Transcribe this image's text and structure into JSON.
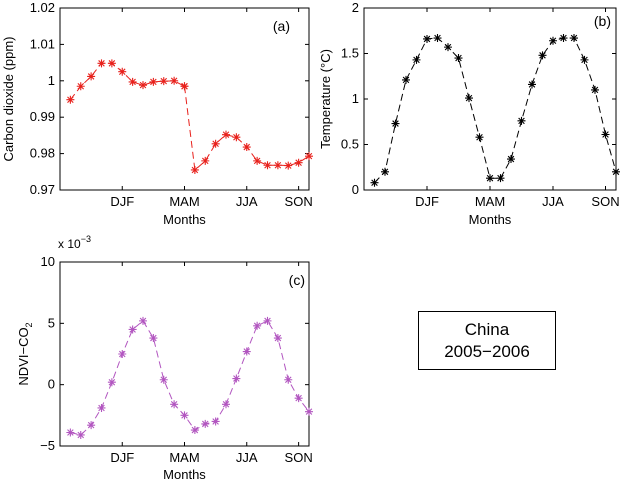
{
  "legend_box": {
    "line1": "China",
    "line2": "2005−2006"
  },
  "chart_data": [
    {
      "type": "line",
      "panel_label": "(a)",
      "color": "#e8211c",
      "xlabel": "Months",
      "ylabel": "Carbon dioxide (ppm)",
      "xticks": [
        "DJF",
        "MAM",
        "JJA",
        "SON"
      ],
      "xlim": [
        0,
        24
      ],
      "ylim": [
        0.97,
        1.02
      ],
      "yticks": [
        0.97,
        0.98,
        0.99,
        1,
        1.01,
        1.02
      ],
      "ytick_labels": [
        "0.97",
        "0.98",
        "0.99",
        "1",
        "1.01",
        "1.02"
      ],
      "marker": "asterisk",
      "line_style": "dashed",
      "series": [
        {
          "x": [
            1,
            2,
            3,
            4,
            5,
            6,
            7,
            8,
            9,
            10,
            11,
            12
          ],
          "y": [
            0.9948,
            0.9985,
            1.0012,
            1.0048,
            1.0048,
            1.0025,
            0.9997,
            0.9988,
            0.9997,
            0.9999,
            1.0,
            0.9985
          ]
        },
        {
          "x": [
            12,
            13,
            14,
            15,
            16,
            17,
            18,
            19,
            20,
            21,
            22,
            23,
            24
          ],
          "y": [
            0.9985,
            0.9755,
            0.978,
            0.9827,
            0.9852,
            0.9845,
            0.9818,
            0.978,
            0.9768,
            0.9768,
            0.9767,
            0.9775,
            0.9793
          ]
        }
      ]
    },
    {
      "type": "line",
      "panel_label": "(b)",
      "color": "#000000",
      "xlabel": "Months",
      "ylabel": "Temperature (°C)",
      "xticks": [
        "DJF",
        "MAM",
        "JJA",
        "SON"
      ],
      "xlim": [
        0,
        24
      ],
      "ylim": [
        0,
        2
      ],
      "yticks": [
        0,
        0.5,
        1,
        1.5,
        2
      ],
      "ytick_labels": [
        "0",
        "0.5",
        "1",
        "1.5",
        "2"
      ],
      "marker": "asterisk",
      "line_style": "dashed",
      "series": [
        {
          "x": [
            1,
            2,
            3,
            4,
            5,
            6,
            7,
            8,
            9,
            10,
            11,
            12,
            13,
            14,
            15,
            16,
            17,
            18,
            19,
            20,
            21,
            22,
            23,
            24
          ],
          "y": [
            0.08,
            0.2,
            0.73,
            1.21,
            1.43,
            1.66,
            1.67,
            1.57,
            1.45,
            1.01,
            0.58,
            0.13,
            0.13,
            0.34,
            0.76,
            1.16,
            1.48,
            1.64,
            1.67,
            1.67,
            1.43,
            1.1,
            0.61,
            0.2
          ]
        }
      ]
    },
    {
      "type": "line",
      "panel_label": "(c)",
      "color": "#b256c0",
      "xlabel": "Months",
      "ylabel": "NDVI−CO",
      "ylabel_subscript": "2",
      "axis_multiplier": "x 10",
      "axis_multiplier_exponent": "−3",
      "xticks": [
        "DJF",
        "MAM",
        "JJA",
        "SON"
      ],
      "xlim": [
        0,
        24
      ],
      "ylim": [
        -5,
        10
      ],
      "yticks": [
        -5,
        0,
        5,
        10
      ],
      "ytick_labels": [
        "−5",
        "0",
        "5",
        "10"
      ],
      "marker": "asterisk",
      "line_style": "dashed",
      "series": [
        {
          "x": [
            1,
            2,
            3,
            4,
            5,
            6,
            7,
            8,
            9,
            10,
            11,
            12,
            13,
            14,
            15,
            16,
            17,
            18,
            19,
            20,
            21,
            22,
            23,
            24
          ],
          "y": [
            -3.9,
            -4.1,
            -3.3,
            -1.9,
            0.2,
            2.5,
            4.5,
            5.2,
            3.8,
            0.4,
            -1.6,
            -2.5,
            -3.7,
            -3.2,
            -3.0,
            -1.6,
            0.5,
            2.7,
            4.8,
            5.2,
            3.8,
            0.4,
            -1.1,
            -2.2
          ]
        }
      ]
    }
  ]
}
